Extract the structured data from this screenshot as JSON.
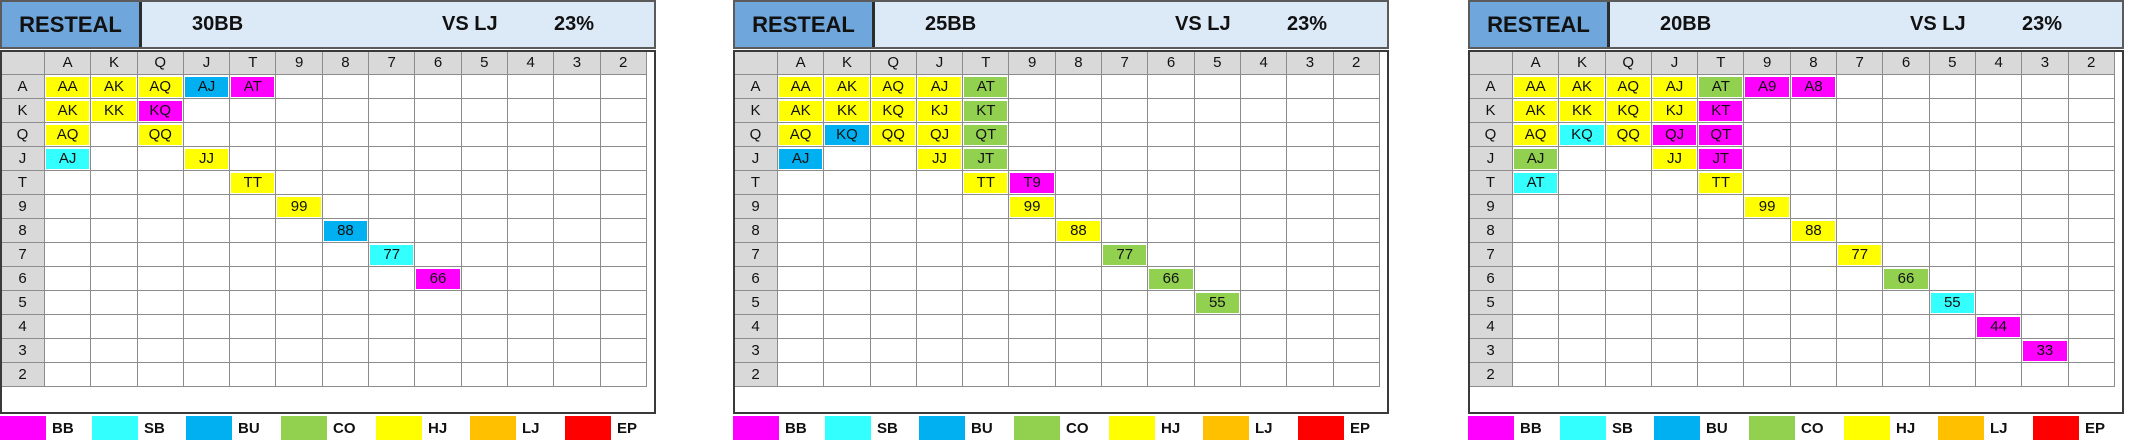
{
  "colors": {
    "BB": "#ff00ff",
    "SB": "#33ffff",
    "BU": "#00b0f0",
    "CO": "#92d050",
    "HJ": "#ffff00",
    "LJ": "#ffc000",
    "EP": "#ff0000"
  },
  "ranks": [
    "A",
    "K",
    "Q",
    "J",
    "T",
    "9",
    "8",
    "7",
    "6",
    "5",
    "4",
    "3",
    "2"
  ],
  "legend": [
    "BB",
    "SB",
    "BU",
    "CO",
    "HJ",
    "LJ",
    "EP"
  ],
  "charts": [
    {
      "title": "RESTEAL",
      "stack": "30BB",
      "vs": "VS LJ",
      "pct": "23%",
      "cells": [
        {
          "r": 0,
          "c": 0,
          "t": "AA",
          "p": "HJ"
        },
        {
          "r": 0,
          "c": 1,
          "t": "AK",
          "p": "HJ"
        },
        {
          "r": 0,
          "c": 2,
          "t": "AQ",
          "p": "HJ"
        },
        {
          "r": 0,
          "c": 3,
          "t": "AJ",
          "p": "BU"
        },
        {
          "r": 0,
          "c": 4,
          "t": "AT",
          "p": "BB"
        },
        {
          "r": 1,
          "c": 0,
          "t": "AK",
          "p": "HJ"
        },
        {
          "r": 1,
          "c": 1,
          "t": "KK",
          "p": "HJ"
        },
        {
          "r": 1,
          "c": 2,
          "t": "KQ",
          "p": "BB"
        },
        {
          "r": 2,
          "c": 0,
          "t": "AQ",
          "p": "HJ"
        },
        {
          "r": 2,
          "c": 2,
          "t": "QQ",
          "p": "HJ"
        },
        {
          "r": 3,
          "c": 0,
          "t": "AJ",
          "p": "SB"
        },
        {
          "r": 3,
          "c": 3,
          "t": "JJ",
          "p": "HJ"
        },
        {
          "r": 4,
          "c": 4,
          "t": "TT",
          "p": "HJ"
        },
        {
          "r": 5,
          "c": 5,
          "t": "99",
          "p": "HJ"
        },
        {
          "r": 6,
          "c": 6,
          "t": "88",
          "p": "BU"
        },
        {
          "r": 7,
          "c": 7,
          "t": "77",
          "p": "SB"
        },
        {
          "r": 8,
          "c": 8,
          "t": "66",
          "p": "BB"
        }
      ]
    },
    {
      "title": "RESTEAL",
      "stack": "25BB",
      "vs": "VS LJ",
      "pct": "23%",
      "cells": [
        {
          "r": 0,
          "c": 0,
          "t": "AA",
          "p": "HJ"
        },
        {
          "r": 0,
          "c": 1,
          "t": "AK",
          "p": "HJ"
        },
        {
          "r": 0,
          "c": 2,
          "t": "AQ",
          "p": "HJ"
        },
        {
          "r": 0,
          "c": 3,
          "t": "AJ",
          "p": "HJ"
        },
        {
          "r": 0,
          "c": 4,
          "t": "AT",
          "p": "CO"
        },
        {
          "r": 1,
          "c": 0,
          "t": "AK",
          "p": "HJ"
        },
        {
          "r": 1,
          "c": 1,
          "t": "KK",
          "p": "HJ"
        },
        {
          "r": 1,
          "c": 2,
          "t": "KQ",
          "p": "HJ"
        },
        {
          "r": 1,
          "c": 3,
          "t": "KJ",
          "p": "HJ"
        },
        {
          "r": 1,
          "c": 4,
          "t": "KT",
          "p": "CO"
        },
        {
          "r": 2,
          "c": 0,
          "t": "AQ",
          "p": "HJ"
        },
        {
          "r": 2,
          "c": 1,
          "t": "KQ",
          "p": "BU"
        },
        {
          "r": 2,
          "c": 2,
          "t": "QQ",
          "p": "HJ"
        },
        {
          "r": 2,
          "c": 3,
          "t": "QJ",
          "p": "HJ"
        },
        {
          "r": 2,
          "c": 4,
          "t": "QT",
          "p": "CO"
        },
        {
          "r": 3,
          "c": 0,
          "t": "AJ",
          "p": "BU"
        },
        {
          "r": 3,
          "c": 3,
          "t": "JJ",
          "p": "HJ"
        },
        {
          "r": 3,
          "c": 4,
          "t": "JT",
          "p": "CO"
        },
        {
          "r": 4,
          "c": 4,
          "t": "TT",
          "p": "HJ"
        },
        {
          "r": 4,
          "c": 5,
          "t": "T9",
          "p": "BB"
        },
        {
          "r": 5,
          "c": 5,
          "t": "99",
          "p": "HJ"
        },
        {
          "r": 6,
          "c": 6,
          "t": "88",
          "p": "HJ"
        },
        {
          "r": 7,
          "c": 7,
          "t": "77",
          "p": "CO"
        },
        {
          "r": 8,
          "c": 8,
          "t": "66",
          "p": "CO"
        },
        {
          "r": 9,
          "c": 9,
          "t": "55",
          "p": "CO"
        }
      ]
    },
    {
      "title": "RESTEAL",
      "stack": "20BB",
      "vs": "VS LJ",
      "pct": "23%",
      "cells": [
        {
          "r": 0,
          "c": 0,
          "t": "AA",
          "p": "HJ"
        },
        {
          "r": 0,
          "c": 1,
          "t": "AK",
          "p": "HJ"
        },
        {
          "r": 0,
          "c": 2,
          "t": "AQ",
          "p": "HJ"
        },
        {
          "r": 0,
          "c": 3,
          "t": "AJ",
          "p": "HJ"
        },
        {
          "r": 0,
          "c": 4,
          "t": "AT",
          "p": "CO"
        },
        {
          "r": 0,
          "c": 5,
          "t": "A9",
          "p": "BB"
        },
        {
          "r": 0,
          "c": 6,
          "t": "A8",
          "p": "BB"
        },
        {
          "r": 1,
          "c": 0,
          "t": "AK",
          "p": "HJ"
        },
        {
          "r": 1,
          "c": 1,
          "t": "KK",
          "p": "HJ"
        },
        {
          "r": 1,
          "c": 2,
          "t": "KQ",
          "p": "HJ"
        },
        {
          "r": 1,
          "c": 3,
          "t": "KJ",
          "p": "HJ"
        },
        {
          "r": 1,
          "c": 4,
          "t": "KT",
          "p": "BB"
        },
        {
          "r": 2,
          "c": 0,
          "t": "AQ",
          "p": "HJ"
        },
        {
          "r": 2,
          "c": 1,
          "t": "KQ",
          "p": "SB"
        },
        {
          "r": 2,
          "c": 2,
          "t": "QQ",
          "p": "HJ"
        },
        {
          "r": 2,
          "c": 3,
          "t": "QJ",
          "p": "BB"
        },
        {
          "r": 2,
          "c": 4,
          "t": "QT",
          "p": "BB"
        },
        {
          "r": 3,
          "c": 0,
          "t": "AJ",
          "p": "CO"
        },
        {
          "r": 3,
          "c": 3,
          "t": "JJ",
          "p": "HJ"
        },
        {
          "r": 3,
          "c": 4,
          "t": "JT",
          "p": "BB"
        },
        {
          "r": 4,
          "c": 0,
          "t": "AT",
          "p": "SB"
        },
        {
          "r": 4,
          "c": 4,
          "t": "TT",
          "p": "HJ"
        },
        {
          "r": 5,
          "c": 5,
          "t": "99",
          "p": "HJ"
        },
        {
          "r": 6,
          "c": 6,
          "t": "88",
          "p": "HJ"
        },
        {
          "r": 7,
          "c": 7,
          "t": "77",
          "p": "HJ"
        },
        {
          "r": 8,
          "c": 8,
          "t": "66",
          "p": "CO"
        },
        {
          "r": 9,
          "c": 9,
          "t": "55",
          "p": "SB"
        },
        {
          "r": 10,
          "c": 10,
          "t": "44",
          "p": "BB"
        },
        {
          "r": 11,
          "c": 11,
          "t": "33",
          "p": "BB"
        }
      ]
    }
  ]
}
